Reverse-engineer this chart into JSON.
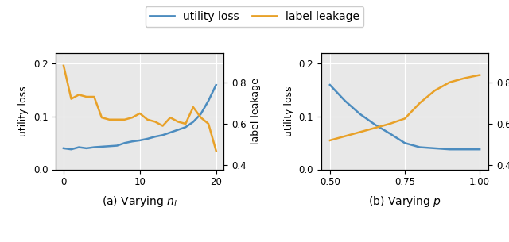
{
  "plot_a": {
    "x": [
      0,
      1,
      2,
      3,
      4,
      5,
      6,
      7,
      8,
      9,
      10,
      11,
      12,
      13,
      14,
      15,
      16,
      17,
      18,
      19,
      20
    ],
    "utility_loss": [
      0.04,
      0.038,
      0.042,
      0.04,
      0.042,
      0.043,
      0.044,
      0.045,
      0.05,
      0.053,
      0.055,
      0.058,
      0.062,
      0.065,
      0.07,
      0.075,
      0.08,
      0.09,
      0.105,
      0.13,
      0.16
    ],
    "label_leakage": [
      0.88,
      0.72,
      0.74,
      0.73,
      0.73,
      0.63,
      0.62,
      0.62,
      0.62,
      0.63,
      0.65,
      0.62,
      0.61,
      0.59,
      0.63,
      0.61,
      0.6,
      0.68,
      0.63,
      0.6,
      0.47
    ],
    "xlabel": "(a) Varying $n_l$",
    "xlim": [
      -1,
      21
    ],
    "xticks": [
      0,
      10,
      20
    ]
  },
  "plot_b": {
    "x": [
      0.5,
      0.55,
      0.6,
      0.65,
      0.7,
      0.75,
      0.8,
      0.85,
      0.9,
      0.95,
      1.0
    ],
    "utility_loss": [
      0.16,
      0.13,
      0.105,
      0.085,
      0.068,
      0.05,
      0.042,
      0.04,
      0.038,
      0.038,
      0.038
    ],
    "label_leakage": [
      0.52,
      0.54,
      0.56,
      0.58,
      0.6,
      0.625,
      0.7,
      0.76,
      0.8,
      0.82,
      0.835
    ],
    "xlabel": "(b) Varying $p$",
    "xlim": [
      0.47,
      1.03
    ],
    "xticks": [
      0.5,
      0.75,
      1.0
    ]
  },
  "ylim_left": [
    0.0,
    0.22
  ],
  "ylim_right": [
    0.38,
    0.94
  ],
  "yticks_left": [
    0.0,
    0.1,
    0.2
  ],
  "yticks_right": [
    0.4,
    0.6,
    0.8
  ],
  "ylabel_left": "utility loss",
  "ylabel_right": "label leakage",
  "line_color_blue": "#4c8cbf",
  "line_color_orange": "#e8a128",
  "legend_labels": [
    "utility loss",
    "label leakage"
  ],
  "bg_color": "#e8e8e8",
  "grid_color": "white",
  "fig_width": 6.4,
  "fig_height": 3.05,
  "legend_fontsize": 10,
  "axis_fontsize": 9,
  "tick_fontsize": 8.5,
  "xlabel_fontsize": 10
}
